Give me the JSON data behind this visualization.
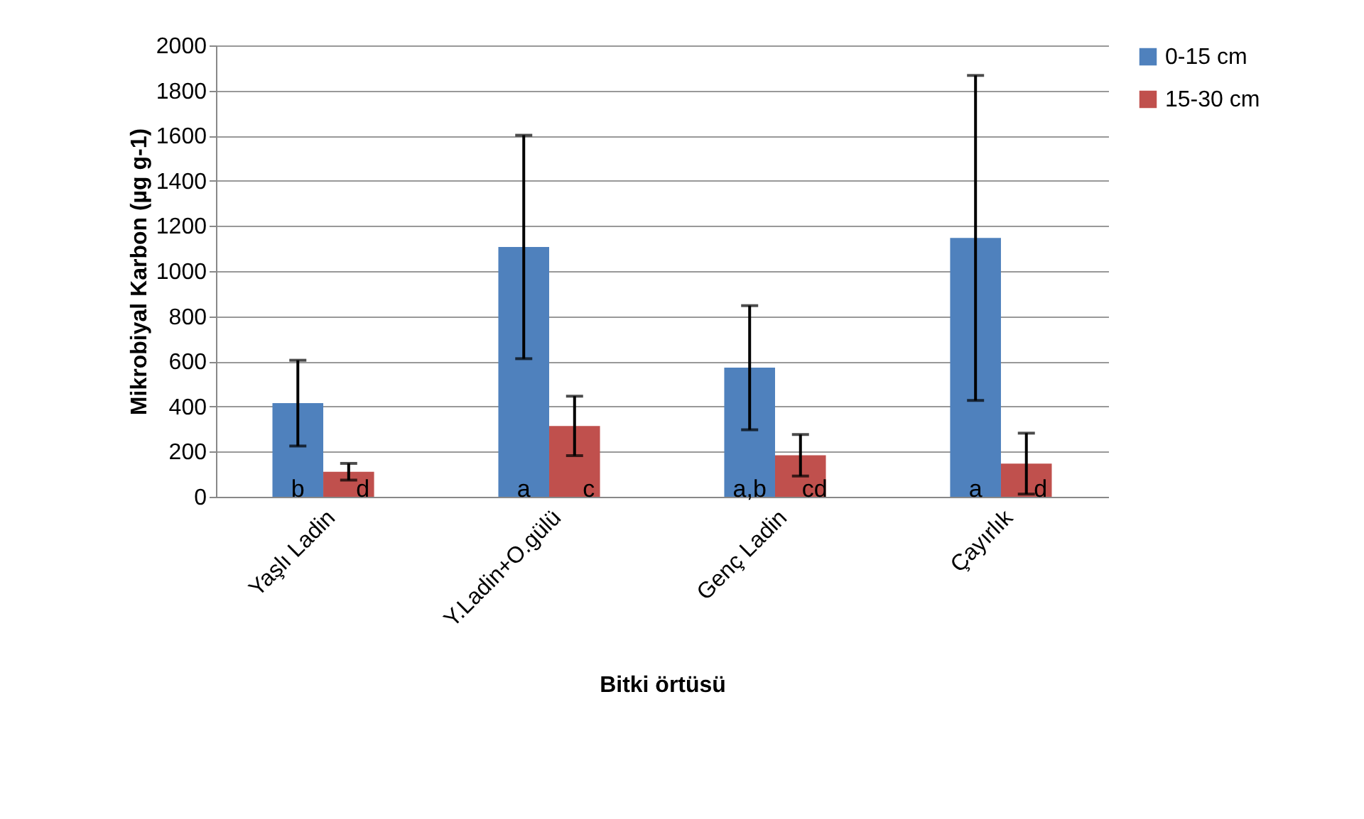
{
  "chart_data": {
    "type": "bar",
    "xlabel": "Bitki örtüsü",
    "ylabel": "Mikrobiyal Karbon (µg g-1)",
    "categories": [
      "Yaşlı Ladin",
      "Y.Ladin+O.gülü",
      "Genç Ladin",
      "Çayırlık"
    ],
    "series": [
      {
        "name": "0-15 cm",
        "color": "#4f81bd",
        "values": [
          415,
          1107,
          572,
          1147
        ],
        "errors": [
          190,
          495,
          275,
          720
        ],
        "value_labels": [
          "b",
          "a",
          "a,b",
          "a"
        ]
      },
      {
        "name": "15-30 cm",
        "color": "#c0504d",
        "values": [
          111,
          314,
          184,
          147
        ],
        "errors": [
          37,
          132,
          92,
          135
        ],
        "value_labels": [
          "d",
          "c",
          "cd",
          "d"
        ]
      }
    ],
    "ylim": [
      0,
      2000
    ],
    "yticks": [
      0,
      200,
      400,
      600,
      800,
      1000,
      1200,
      1400,
      1600,
      1800,
      2000
    ],
    "grid": "y",
    "legend": "right"
  }
}
